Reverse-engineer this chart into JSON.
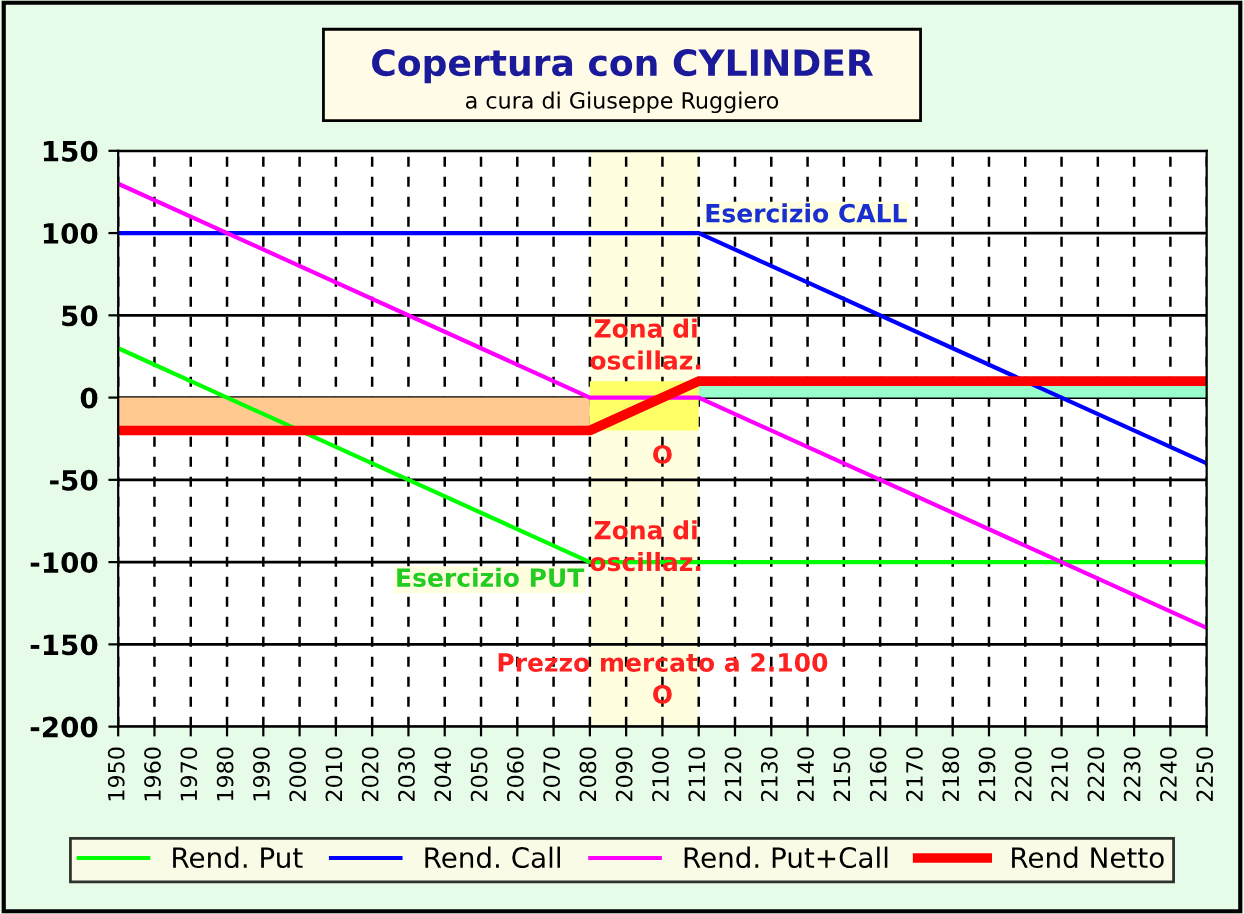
{
  "chart_data": {
    "type": "line",
    "title": "Copertura con CYLINDER",
    "subtitle": "a cura di Giuseppe Ruggiero",
    "xlim": [
      1950,
      2250
    ],
    "xticks": [
      1950,
      1960,
      1970,
      1980,
      1990,
      2000,
      2010,
      2020,
      2030,
      2040,
      2050,
      2060,
      2070,
      2080,
      2090,
      2100,
      2110,
      2120,
      2130,
      2140,
      2150,
      2160,
      2170,
      2180,
      2190,
      2200,
      2210,
      2220,
      2230,
      2240,
      2250
    ],
    "ylim": [
      -200,
      150
    ],
    "yticks": [
      -200,
      -150,
      -100,
      -50,
      0,
      50,
      100,
      150
    ],
    "grid": true,
    "legend": "bottom",
    "bands": [
      {
        "axis": "x",
        "from": 2080,
        "to": 2110,
        "color": "#ffffe0"
      }
    ],
    "series": [
      {
        "type": "area",
        "x": [
          1950,
          2080
        ],
        "values": [
          -20,
          -20
        ],
        "color": "#ffc98f"
      },
      {
        "type": "area",
        "x": [
          2110,
          2250
        ],
        "values": [
          10,
          10
        ],
        "color": "#99ffcc"
      },
      {
        "type": "area",
        "x": [
          2080,
          2110
        ],
        "values": [
          10,
          10
        ],
        "color": "#ffff66"
      },
      {
        "type": "area",
        "x": [
          2080,
          2110
        ],
        "values": [
          -20,
          -20
        ],
        "color": "#ffff66"
      },
      {
        "name": "Rend. Put",
        "color": "#00ff00",
        "x": [
          1950,
          2080,
          2250
        ],
        "values": [
          30,
          -100,
          -100
        ]
      },
      {
        "name": "Rend. Call",
        "color": "#0000ff",
        "x": [
          1950,
          2110,
          2250
        ],
        "values": [
          100,
          100,
          -40
        ]
      },
      {
        "name": "Rend. Put+Call",
        "color": "#ff00ff",
        "x": [
          1950,
          2080,
          2110,
          2250
        ],
        "values": [
          130,
          0,
          0,
          -140
        ]
      },
      {
        "name": "Rend Netto",
        "color": "#ff0000",
        "x": [
          1950,
          2080,
          2110,
          2250
        ],
        "values": [
          -20,
          -20,
          10,
          10
        ]
      }
    ],
    "annotations": [
      {
        "text": "Esercizio CALL",
        "x": 2110,
        "y": 100
      },
      "Zona di\noscillaz.",
      "Zona di\noscillaz.",
      {
        "text": "Esercizio PUT",
        "x": 2080,
        "y": -100
      },
      "O",
      "Prezzo mercato a 2.100\nO"
    ]
  }
}
